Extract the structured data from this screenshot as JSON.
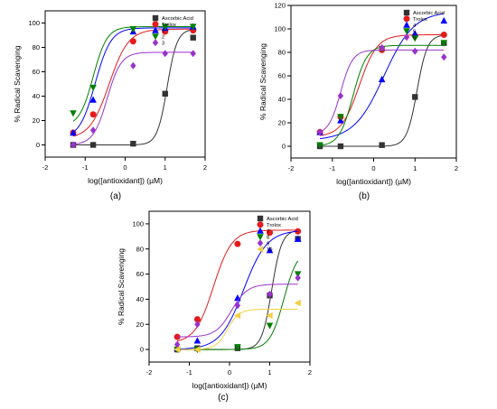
{
  "chart_data": [
    {
      "type": "scatter",
      "panel_label": "(a)",
      "xlabel": "log([antioxidant]) (µM)",
      "ylabel": "% Radical Scavenging",
      "xlim": [
        -2,
        2
      ],
      "ylim": [
        -10,
        110
      ],
      "xticks": [
        -2,
        -1,
        0,
        1,
        2
      ],
      "yticks": [
        0,
        20,
        40,
        60,
        80,
        100
      ],
      "legend_position": "top-right",
      "x": [
        -1.3,
        -0.8,
        0.2,
        1.0,
        1.7
      ],
      "series": [
        {
          "name": "Ascorbic Acid",
          "color": "#333333",
          "marker": "square",
          "values": [
            0,
            0,
            1,
            42,
            88
          ],
          "curve": {
            "bottom": 0,
            "top": 95,
            "x50": 1.05,
            "slope": 3.5
          }
        },
        {
          "name": "Trolox",
          "color": "#e41a1c",
          "marker": "circle",
          "values": [
            10,
            25,
            85,
            93,
            94
          ],
          "curve": {
            "bottom": 5,
            "top": 95,
            "x50": -0.4,
            "slope": 1.8
          }
        },
        {
          "name": "1",
          "color": "#0000ff",
          "marker": "triangle-up",
          "values": [
            10,
            37,
            93,
            96,
            97
          ],
          "curve": {
            "bottom": 5,
            "top": 96,
            "x50": -0.75,
            "slope": 2.2
          }
        },
        {
          "name": "2",
          "color": "#008000",
          "marker": "triangle-down",
          "values": [
            26,
            47,
            95,
            97,
            97
          ],
          "curve": {
            "bottom": 15,
            "top": 97,
            "x50": -0.8,
            "slope": 2.5
          }
        },
        {
          "name": "3",
          "color": "#9932cc",
          "marker": "diamond",
          "values": [
            0,
            12,
            65,
            75,
            75
          ],
          "curve": {
            "bottom": 0,
            "top": 76,
            "x50": -0.45,
            "slope": 2.5
          }
        }
      ]
    },
    {
      "type": "scatter",
      "panel_label": "(b)",
      "xlabel": "log([antioxidant]) (µM)",
      "ylabel": "% Radical Scavenging",
      "xlim": [
        -2,
        2
      ],
      "ylim": [
        -10,
        120
      ],
      "xticks": [
        -2,
        -1,
        0,
        1,
        2
      ],
      "yticks": [
        0,
        20,
        40,
        60,
        80,
        100,
        120
      ],
      "legend_position": "top-right",
      "x": [
        -1.3,
        -0.8,
        0.2,
        1.0,
        1.7
      ],
      "series": [
        {
          "name": "Ascorbic Acid",
          "color": "#333333",
          "marker": "square",
          "values": [
            0,
            0,
            1,
            42,
            88
          ],
          "curve": {
            "bottom": 0,
            "top": 95,
            "x50": 1.05,
            "slope": 3.5
          }
        },
        {
          "name": "Trolox",
          "color": "#e41a1c",
          "marker": "circle",
          "values": [
            12,
            25,
            82,
            94,
            95
          ],
          "curve": {
            "bottom": 8,
            "top": 95,
            "x50": -0.35,
            "slope": 2
          }
        },
        {
          "name": "4",
          "color": "#0000ff",
          "marker": "triangle-up",
          "values": [
            12,
            22,
            57,
            96,
            107
          ],
          "curve": {
            "bottom": 5,
            "top": 115,
            "x50": 0.25,
            "slope": 1.2
          }
        },
        {
          "name": "5",
          "color": "#008000",
          "marker": "triangle-down",
          "values": [
            1,
            25,
            83,
            92,
            88
          ],
          "curve": {
            "bottom": 0,
            "top": 86,
            "x50": -0.5,
            "slope": 2.6
          }
        },
        {
          "name": "6",
          "color": "#9932cc",
          "marker": "diamond",
          "values": [
            12,
            43,
            84,
            81,
            76
          ],
          "curve": {
            "bottom": 10,
            "top": 82,
            "x50": -0.8,
            "slope": 3
          }
        }
      ]
    },
    {
      "type": "scatter",
      "panel_label": "(c)",
      "xlabel": "log([antioxidant]) (µM)",
      "ylabel": "% Radical Scavenging",
      "xlim": [
        -2,
        2
      ],
      "ylim": [
        -10,
        110
      ],
      "xticks": [
        -2,
        -1,
        0,
        1,
        2
      ],
      "yticks": [
        0,
        20,
        40,
        60,
        80,
        100
      ],
      "legend_position": "top-right",
      "x": [
        -1.3,
        -0.8,
        0.2,
        1.0,
        1.7
      ],
      "series": [
        {
          "name": "Ascorbic Acid",
          "color": "#333333",
          "marker": "square",
          "values": [
            0,
            1,
            1,
            43,
            88
          ],
          "curve": {
            "bottom": 0,
            "top": 95,
            "x50": 1.05,
            "slope": 3.5
          }
        },
        {
          "name": "Trolox",
          "color": "#e41a1c",
          "marker": "circle",
          "values": [
            10,
            24,
            84,
            93,
            94
          ],
          "curve": {
            "bottom": 5,
            "top": 95,
            "x50": -0.4,
            "slope": 1.9
          }
        },
        {
          "name": "7",
          "color": "#0000ff",
          "marker": "triangle-up",
          "values": [
            1,
            7,
            41,
            79,
            88
          ],
          "curve": {
            "bottom": 0,
            "top": 95,
            "x50": 0.35,
            "slope": 1.5
          }
        },
        {
          "name": "8",
          "color": "#008000",
          "marker": "triangle-down",
          "values": [
            0,
            0,
            2,
            19,
            60
          ],
          "curve": {
            "bottom": 0,
            "top": 80,
            "x50": 1.35,
            "slope": 2.5
          }
        },
        {
          "name": "9",
          "color": "#9932cc",
          "marker": "diamond",
          "values": [
            4,
            20,
            35,
            44,
            57
          ],
          "curve": {
            "bottom": 10,
            "top": 52,
            "x50": 0.05,
            "slope": 2.2
          }
        },
        {
          "name": "10",
          "color": "#f2d040",
          "marker": "triangle-left",
          "values": [
            0,
            0,
            27,
            27,
            37
          ],
          "curve": {
            "bottom": 0,
            "top": 32,
            "x50": -0.05,
            "slope": 3
          }
        }
      ]
    }
  ]
}
